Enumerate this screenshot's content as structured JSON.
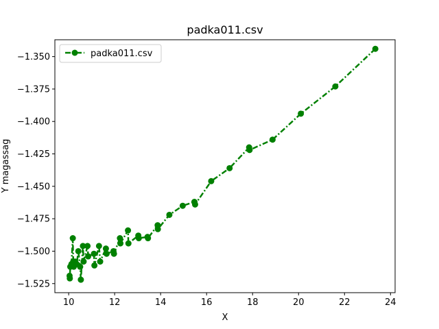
{
  "colors": {
    "series": "#008000",
    "axes": "#000000",
    "legend_border": "#cccccc",
    "background": "#ffffff"
  },
  "chart_data": {
    "type": "line",
    "title": "padka011.csv",
    "xlabel": "X",
    "ylabel": "Y magassag",
    "xlim": [
      9.4,
      24.2
    ],
    "ylim": [
      -1.532,
      -1.337
    ],
    "xticks": [
      10,
      12,
      14,
      16,
      18,
      20,
      22,
      24
    ],
    "xtick_labels": [
      "10",
      "12",
      "14",
      "16",
      "18",
      "20",
      "22",
      "24"
    ],
    "yticks": [
      -1.525,
      -1.5,
      -1.475,
      -1.45,
      -1.425,
      -1.4,
      -1.375,
      -1.35
    ],
    "ytick_labels": [
      "−1.525",
      "−1.500",
      "−1.475",
      "−1.450",
      "−1.425",
      "−1.400",
      "−1.375",
      "−1.350"
    ],
    "grid": false,
    "legend": {
      "placement": "top-left"
    },
    "series": [
      {
        "name": "padka011.csv",
        "line_style": "dash-dot",
        "marker": "circle",
        "points": [
          [
            23.34,
            -1.344
          ],
          [
            21.6,
            -1.373
          ],
          [
            20.1,
            -1.394
          ],
          [
            18.87,
            -1.414
          ],
          [
            17.87,
            -1.422
          ],
          [
            17.85,
            -1.42
          ],
          [
            17.0,
            -1.436
          ],
          [
            16.2,
            -1.446
          ],
          [
            15.5,
            -1.464
          ],
          [
            15.47,
            -1.462
          ],
          [
            14.96,
            -1.465
          ],
          [
            14.38,
            -1.472
          ],
          [
            13.88,
            -1.483
          ],
          [
            13.87,
            -1.48
          ],
          [
            13.45,
            -1.49
          ],
          [
            13.43,
            -1.489
          ],
          [
            13.05,
            -1.49
          ],
          [
            13.03,
            -1.488
          ],
          [
            12.6,
            -1.494
          ],
          [
            12.58,
            -1.484
          ],
          [
            12.25,
            -1.494
          ],
          [
            12.23,
            -1.49
          ],
          [
            11.97,
            -1.502
          ],
          [
            11.95,
            -1.5
          ],
          [
            11.65,
            -1.502
          ],
          [
            11.62,
            -1.498
          ],
          [
            11.37,
            -1.508
          ],
          [
            11.32,
            -1.496
          ],
          [
            11.12,
            -1.511
          ],
          [
            11.1,
            -1.502
          ],
          [
            10.85,
            -1.504
          ],
          [
            10.82,
            -1.496
          ],
          [
            10.65,
            -1.508
          ],
          [
            10.62,
            -1.496
          ],
          [
            10.53,
            -1.522
          ],
          [
            10.5,
            -1.512
          ],
          [
            10.42,
            -1.5
          ],
          [
            10.35,
            -1.51
          ],
          [
            10.28,
            -1.508
          ],
          [
            10.22,
            -1.512
          ],
          [
            10.2,
            -1.508
          ],
          [
            10.18,
            -1.49
          ],
          [
            10.12,
            -1.51
          ],
          [
            10.07,
            -1.512
          ],
          [
            10.05,
            -1.521
          ],
          [
            10.04,
            -1.519
          ]
        ]
      }
    ]
  }
}
